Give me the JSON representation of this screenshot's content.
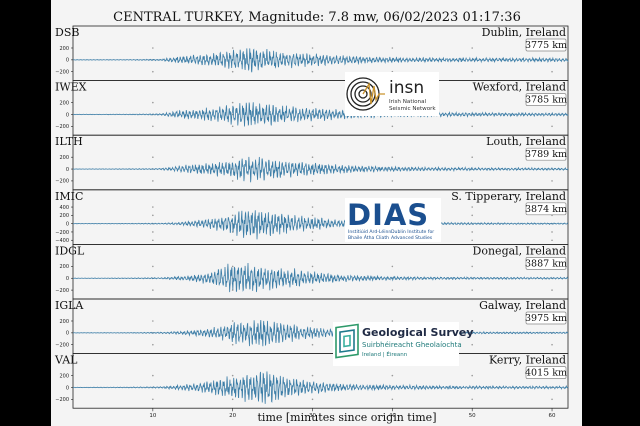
{
  "chart_data": {
    "type": "line",
    "title": "CENTRAL TURKEY, Magnitude: 7.8 mw, 06/02/2023 01:17:36",
    "xlabel": "time [minutes since origin time]",
    "xlim": [
      0,
      62
    ],
    "xticks": [
      "10",
      "20",
      "30",
      "40",
      "50",
      "60"
    ],
    "grid": true,
    "series": [
      {
        "name": "DSB",
        "location": "Dublin, Ireland",
        "distance": "3775 km",
        "yticks": [
          "200",
          "0",
          "−200"
        ],
        "ylim": [
          -350,
          350
        ],
        "peak_amplitude": 260,
        "envelope": [
          [
            0,
            4
          ],
          [
            6.5,
            6
          ],
          [
            8,
            8
          ],
          [
            11,
            14
          ],
          [
            13,
            60
          ],
          [
            16,
            95
          ],
          [
            18,
            120
          ],
          [
            20,
            170
          ],
          [
            22,
            240
          ],
          [
            24,
            175
          ],
          [
            27,
            140
          ],
          [
            30,
            110
          ],
          [
            33,
            80
          ],
          [
            36,
            60
          ],
          [
            40,
            45
          ],
          [
            45,
            38
          ],
          [
            50,
            35
          ],
          [
            55,
            33
          ],
          [
            60,
            34
          ],
          [
            62,
            32
          ]
        ]
      },
      {
        "name": "IWEX",
        "location": "Wexford, Ireland",
        "distance": "3785 km",
        "yticks": [
          "200",
          "0",
          "−200"
        ],
        "ylim": [
          -350,
          350
        ],
        "peak_amplitude": 270,
        "envelope": [
          [
            0,
            4
          ],
          [
            6.5,
            6
          ],
          [
            8,
            8
          ],
          [
            11,
            14
          ],
          [
            13,
            60
          ],
          [
            16,
            100
          ],
          [
            18,
            130
          ],
          [
            20,
            180
          ],
          [
            22,
            250
          ],
          [
            24,
            190
          ],
          [
            27,
            150
          ],
          [
            30,
            120
          ],
          [
            33,
            85
          ],
          [
            36,
            62
          ],
          [
            40,
            45
          ],
          [
            45,
            38
          ],
          [
            50,
            32
          ],
          [
            55,
            28
          ],
          [
            60,
            26
          ],
          [
            62,
            25
          ]
        ]
      },
      {
        "name": "ILTH",
        "location": "Louth, Ireland",
        "distance": "3789 km",
        "yticks": [
          "200",
          "0",
          "−200"
        ],
        "ylim": [
          -350,
          350
        ],
        "peak_amplitude": 240,
        "envelope": [
          [
            0,
            3
          ],
          [
            6.5,
            6
          ],
          [
            8,
            8
          ],
          [
            11,
            12
          ],
          [
            13,
            50
          ],
          [
            16,
            90
          ],
          [
            18,
            120
          ],
          [
            20,
            170
          ],
          [
            22,
            230
          ],
          [
            24,
            200
          ],
          [
            27,
            150
          ],
          [
            30,
            115
          ],
          [
            33,
            80
          ],
          [
            36,
            58
          ],
          [
            40,
            40
          ],
          [
            45,
            30
          ],
          [
            50,
            26
          ],
          [
            55,
            22
          ],
          [
            60,
            20
          ],
          [
            62,
            20
          ]
        ]
      },
      {
        "name": "IMIC",
        "location": "S. Tipperary, Ireland",
        "distance": "3874 km",
        "yticks": [
          "400",
          "200",
          "0",
          "−200",
          "−400"
        ],
        "ylim": [
          -500,
          500
        ],
        "peak_amplitude": 420,
        "envelope": [
          [
            0,
            4
          ],
          [
            6.5,
            8
          ],
          [
            8,
            10
          ],
          [
            11,
            14
          ],
          [
            13,
            30
          ],
          [
            16,
            90
          ],
          [
            18,
            160
          ],
          [
            20,
            260
          ],
          [
            22,
            400
          ],
          [
            24,
            320
          ],
          [
            27,
            250
          ],
          [
            30,
            160
          ],
          [
            33,
            100
          ],
          [
            36,
            70
          ],
          [
            40,
            45
          ],
          [
            45,
            32
          ],
          [
            50,
            25
          ],
          [
            55,
            20
          ],
          [
            60,
            18
          ],
          [
            62,
            18
          ]
        ]
      },
      {
        "name": "IDGL",
        "location": "Donegal, Ireland",
        "distance": "3887 km",
        "yticks": [
          "200",
          "0",
          "−200"
        ],
        "ylim": [
          -350,
          350
        ],
        "peak_amplitude": 280,
        "envelope": [
          [
            0,
            3
          ],
          [
            6.5,
            6
          ],
          [
            8,
            8
          ],
          [
            11,
            12
          ],
          [
            13,
            30
          ],
          [
            16,
            70
          ],
          [
            18,
            160
          ],
          [
            20,
            270
          ],
          [
            22,
            250
          ],
          [
            24,
            210
          ],
          [
            27,
            170
          ],
          [
            30,
            110
          ],
          [
            33,
            70
          ],
          [
            36,
            48
          ],
          [
            40,
            32
          ],
          [
            45,
            25
          ],
          [
            50,
            20
          ],
          [
            55,
            18
          ],
          [
            60,
            16
          ],
          [
            62,
            16
          ]
        ]
      },
      {
        "name": "IGLA",
        "location": "Galway, Ireland",
        "distance": "3975 km",
        "yticks": [
          "200",
          "0",
          "−200"
        ],
        "ylim": [
          -350,
          350
        ],
        "peak_amplitude": 260,
        "envelope": [
          [
            0,
            3
          ],
          [
            6.5,
            6
          ],
          [
            8,
            8
          ],
          [
            11,
            12
          ],
          [
            13,
            25
          ],
          [
            16,
            60
          ],
          [
            18,
            100
          ],
          [
            20,
            180
          ],
          [
            22,
            220
          ],
          [
            24,
            260
          ],
          [
            27,
            150
          ],
          [
            30,
            100
          ],
          [
            33,
            65
          ],
          [
            36,
            45
          ],
          [
            40,
            30
          ],
          [
            45,
            22
          ],
          [
            50,
            18
          ],
          [
            55,
            16
          ],
          [
            60,
            14
          ],
          [
            62,
            14
          ]
        ]
      },
      {
        "name": "VAL",
        "location": "Kerry, Ireland",
        "distance": "4015 km",
        "yticks": [
          "200",
          "0",
          "−200"
        ],
        "ylim": [
          -350,
          350
        ],
        "peak_amplitude": 320,
        "envelope": [
          [
            0,
            4
          ],
          [
            6.5,
            8
          ],
          [
            8,
            10
          ],
          [
            11,
            14
          ],
          [
            13,
            40
          ],
          [
            16,
            80
          ],
          [
            18,
            140
          ],
          [
            20,
            190
          ],
          [
            22,
            250
          ],
          [
            24,
            320
          ],
          [
            27,
            180
          ],
          [
            30,
            110
          ],
          [
            33,
            70
          ],
          [
            36,
            50
          ],
          [
            40,
            40
          ],
          [
            45,
            32
          ],
          [
            50,
            26
          ],
          [
            55,
            24
          ],
          [
            60,
            22
          ],
          [
            62,
            22
          ]
        ]
      }
    ],
    "trace_color": "#3f7fa8"
  },
  "logos": {
    "insn": {
      "name": "insn",
      "line1": "Irish National",
      "line2": "Seismic Network"
    },
    "dias": {
      "name": "DIAS",
      "line1": "Institiúid Ard-Léinn",
      "line2": "Bhaile Átha Cliath",
      "line3": "Dublin Institute for",
      "line4": "Advanced Studies"
    },
    "gsi": {
      "name": "Geological Survey",
      "line1": "Suirbhéireacht Gheolaíochta",
      "line2": "Ireland | Éireann"
    }
  }
}
